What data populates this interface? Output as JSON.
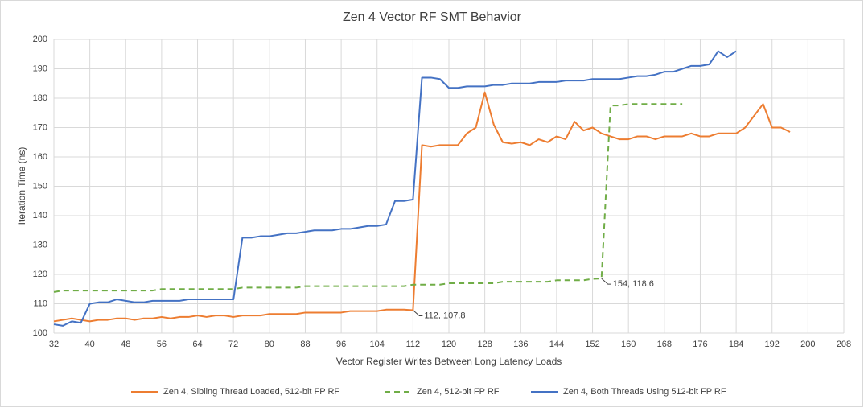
{
  "chart_data": {
    "type": "line",
    "title": "Zen 4 Vector RF SMT Behavior",
    "x_label": "Vector Register Writes Between  Long Latency Loads",
    "y_label": "Iteration Time (ns)",
    "x": [
      32,
      34,
      36,
      38,
      40,
      42,
      44,
      46,
      48,
      50,
      52,
      54,
      56,
      58,
      60,
      62,
      64,
      66,
      68,
      70,
      72,
      74,
      76,
      78,
      80,
      82,
      84,
      86,
      88,
      90,
      92,
      94,
      96,
      98,
      100,
      102,
      104,
      106,
      108,
      110,
      112,
      114,
      116,
      118,
      120,
      122,
      124,
      126,
      128,
      130,
      132,
      134,
      136,
      138,
      140,
      142,
      144,
      146,
      148,
      150,
      152,
      154,
      156,
      158,
      160,
      162,
      164,
      166,
      168,
      170,
      172,
      174,
      176,
      178,
      180,
      182,
      184,
      186,
      188,
      190,
      192,
      194,
      196
    ],
    "series": [
      {
        "name": "Zen 4, Sibling Thread Loaded, 512-bit FP RF",
        "color": "#ed7d31",
        "dash": false,
        "values": [
          104,
          104.5,
          105,
          104.5,
          104,
          104.5,
          104.5,
          105,
          105,
          104.5,
          105,
          105,
          105.5,
          105,
          105.5,
          105.5,
          106,
          105.5,
          106,
          106,
          105.5,
          106,
          106,
          106,
          106.5,
          106.5,
          106.5,
          106.5,
          107,
          107,
          107,
          107,
          107,
          107.5,
          107.5,
          107.5,
          107.5,
          108,
          108,
          108,
          107.8,
          164,
          163.5,
          164,
          164,
          164,
          168,
          170,
          182,
          171,
          165,
          164.5,
          165,
          164,
          166,
          165,
          167,
          166,
          172,
          169,
          170,
          168,
          167,
          166,
          166,
          167,
          167,
          166,
          167,
          167,
          167,
          168,
          167,
          167,
          168,
          168,
          168,
          170,
          174,
          178,
          170,
          170,
          168.5
        ]
      },
      {
        "name": "Zen 4, 512-bit FP RF",
        "color": "#70ad47",
        "dash": true,
        "values": [
          114,
          114.5,
          114.5,
          114.5,
          114.5,
          114.5,
          114.5,
          114.5,
          114.5,
          114.5,
          114.5,
          114.5,
          115,
          115,
          115,
          115,
          115,
          115,
          115,
          115,
          115,
          115.5,
          115.5,
          115.5,
          115.5,
          115.5,
          115.5,
          115.5,
          116,
          116,
          116,
          116,
          116,
          116,
          116,
          116,
          116,
          116,
          116,
          116,
          116.5,
          116.5,
          116.5,
          116.5,
          117,
          117,
          117,
          117,
          117,
          117,
          117.5,
          117.5,
          117.5,
          117.5,
          117.5,
          117.5,
          118,
          118,
          118,
          118,
          118.5,
          118.6,
          177.5,
          177.5,
          178,
          178,
          178,
          178,
          178,
          178,
          178,
          null,
          null,
          null,
          null,
          null,
          null,
          null,
          null,
          null,
          null,
          null,
          null
        ]
      },
      {
        "name": "Zen 4, Both Threads Using 512-bit FP RF",
        "color": "#4472c4",
        "dash": false,
        "values": [
          103,
          102.5,
          104,
          103.5,
          110,
          110.5,
          110.5,
          111.5,
          111,
          110.5,
          110.5,
          111,
          111,
          111,
          111,
          111.5,
          111.5,
          111.5,
          111.5,
          111.5,
          111.5,
          132.5,
          132.5,
          133,
          133,
          133.5,
          134,
          134,
          134.5,
          135,
          135,
          135,
          135.5,
          135.5,
          136,
          136.5,
          136.5,
          137,
          145,
          145,
          145.5,
          187,
          187,
          186.5,
          183.5,
          183.5,
          184,
          184,
          184,
          184.5,
          184.5,
          185,
          185,
          185,
          185.5,
          185.5,
          185.5,
          186,
          186,
          186,
          186.5,
          186.5,
          186.5,
          186.5,
          187,
          187.5,
          187.5,
          188,
          189,
          189,
          190,
          191,
          191,
          191.5,
          196,
          194,
          196,
          null,
          null,
          null,
          null,
          null,
          null
        ]
      }
    ],
    "annotations": [
      {
        "text": "112, 107.8",
        "x": 112,
        "y": 107.8
      },
      {
        "text": "154, 118.6",
        "x": 154,
        "y": 118.6
      }
    ],
    "xlim": [
      32,
      208
    ],
    "xticks": [
      32,
      40,
      48,
      56,
      64,
      72,
      80,
      88,
      96,
      104,
      112,
      120,
      128,
      136,
      144,
      152,
      160,
      168,
      176,
      184,
      192,
      200,
      208
    ],
    "ylim": [
      100,
      200
    ],
    "yticks": [
      100,
      110,
      120,
      130,
      140,
      150,
      160,
      170,
      180,
      190,
      200
    ],
    "grid": true,
    "legend": "bottom"
  }
}
